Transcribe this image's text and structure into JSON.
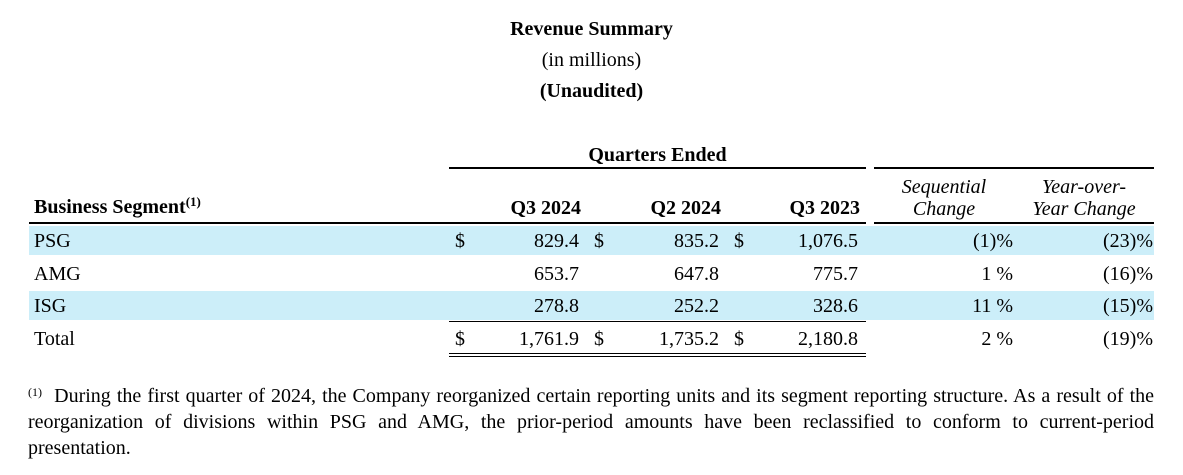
{
  "title": "Revenue Summary",
  "subtitle": "(in millions)",
  "audit_note": "(Unaudited)",
  "group_header": "Quarters Ended",
  "columns": {
    "segment": "Business Segment",
    "segment_footnote_ref": "(1)",
    "q3_2024": "Q3 2024",
    "q2_2024": "Q2 2024",
    "q3_2023": "Q3 2023",
    "seq_line1": "Sequential",
    "seq_line2": "Change",
    "yoy_line1": "Year-over-",
    "yoy_line2": "Year Change"
  },
  "rows": [
    {
      "segment": "PSG",
      "cur1": "$",
      "q3_2024": "829.4",
      "cur2": "$",
      "q2_2024": "835.2",
      "cur3": "$",
      "q3_2023": "1,076.5",
      "seq": "(1)%",
      "yoy": "(23)%"
    },
    {
      "segment": "AMG",
      "cur1": "",
      "q3_2024": "653.7",
      "cur2": "",
      "q2_2024": "647.8",
      "cur3": "",
      "q3_2023": "775.7",
      "seq": "1 %",
      "yoy": "(16)%"
    },
    {
      "segment": "ISG",
      "cur1": "",
      "q3_2024": "278.8",
      "cur2": "",
      "q2_2024": "252.2",
      "cur3": "",
      "q3_2023": "328.6",
      "seq": "11 %",
      "yoy": "(15)%"
    },
    {
      "segment": "Total",
      "cur1": "$",
      "q3_2024": "1,761.9",
      "cur2": "$",
      "q2_2024": "1,735.2",
      "cur3": "$",
      "q3_2023": "2,180.8",
      "seq": "2 %",
      "yoy": "(19)%"
    }
  ],
  "footnote": {
    "marker": "(1)",
    "text": "During the first quarter of 2024, the Company reorganized certain reporting units and its segment reporting structure. As a result of the reorganization of divisions within PSG and AMG, the prior-period amounts have been reclassified to conform to current-period presentation."
  }
}
